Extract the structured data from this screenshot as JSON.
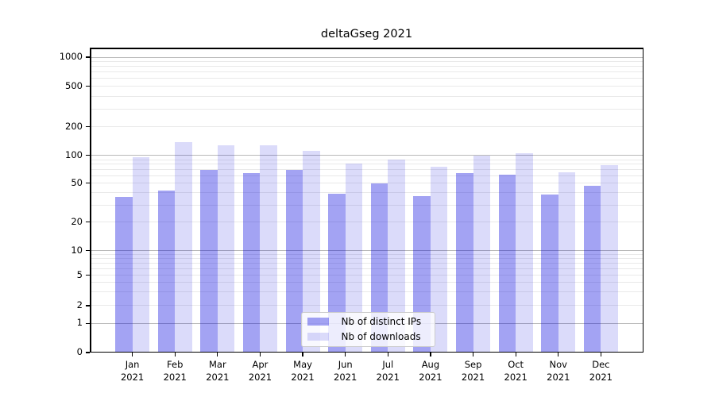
{
  "chart_data": {
    "type": "bar",
    "title": "deltaGseg 2021",
    "categories": [
      "Jan",
      "Feb",
      "Mar",
      "Apr",
      "May",
      "Jun",
      "Jul",
      "Aug",
      "Sep",
      "Oct",
      "Nov",
      "Dec"
    ],
    "category_sublabel": "2021",
    "series": [
      {
        "name": "Nb of distinct IPs",
        "color": "rgba(0,0,221,0.36)",
        "values": [
          36,
          42,
          70,
          64,
          69,
          39,
          50,
          37,
          64,
          62,
          38,
          47
        ]
      },
      {
        "name": "Nb of downloads",
        "color": "rgba(0,0,221,0.14)",
        "values": [
          96,
          138,
          127,
          128,
          112,
          81,
          90,
          75,
          99,
          106,
          65,
          79
        ]
      }
    ],
    "yscale": "symlog",
    "ylim": [
      0,
      1260
    ],
    "y_tick_labels": [
      1000,
      500,
      200,
      100,
      50,
      20,
      10,
      5,
      2,
      1,
      0
    ],
    "y_major_grid": [
      1,
      10,
      100,
      1000
    ],
    "y_minor_grid": [
      2,
      3,
      4,
      5,
      6,
      7,
      8,
      9,
      20,
      30,
      40,
      50,
      60,
      70,
      80,
      90,
      200,
      300,
      400,
      500,
      600,
      700,
      800,
      900
    ],
    "grid": true,
    "legend_position": "lower center",
    "xlabel": "",
    "ylabel": ""
  },
  "legend": {
    "items": [
      {
        "label": "Nb of distinct IPs",
        "swatch_color": "rgba(0,0,221,0.36)"
      },
      {
        "label": "Nb of downloads",
        "swatch_color": "rgba(0,0,221,0.14)"
      }
    ]
  },
  "colors": {
    "background": "#ffffff",
    "axis": "#000000",
    "major_grid": "#b9b9b9",
    "minor_grid": "#e9e9e9",
    "tick_label": "#000000",
    "legend_bg": "rgba(255,255,255,0.8)",
    "legend_border": "#cccccc"
  }
}
